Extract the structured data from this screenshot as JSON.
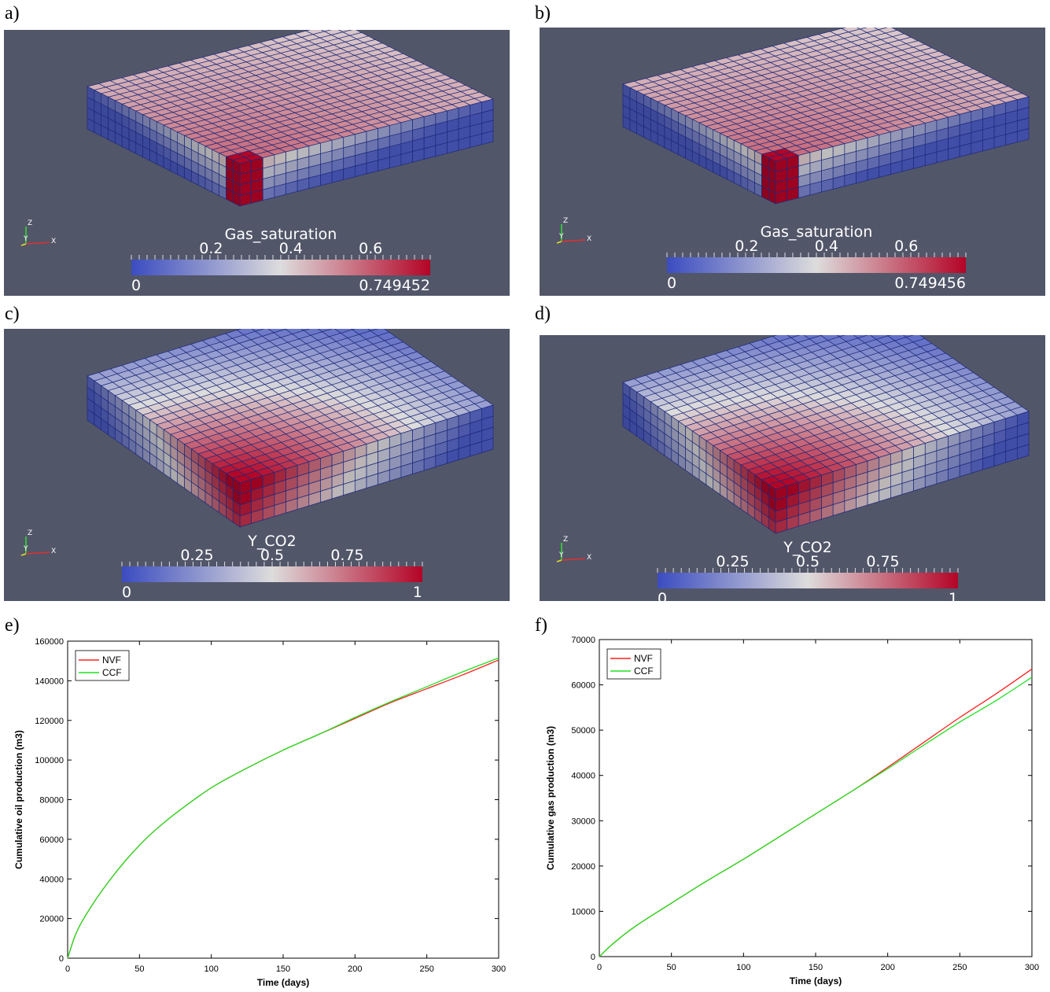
{
  "panels": [
    {
      "label": "a)",
      "colorbar_title": "Gas_saturation",
      "ticks": [
        "0.2",
        "0.4",
        "0.6"
      ],
      "min_label": "0",
      "max_label": "0.749452",
      "field": "gas",
      "axes": {
        "z": "Z",
        "y": "Y",
        "x": "X"
      }
    },
    {
      "label": "b)",
      "colorbar_title": "Gas_saturation",
      "ticks": [
        "0.2",
        "0.4",
        "0.6"
      ],
      "min_label": "0",
      "max_label": "0.749456",
      "field": "gas",
      "axes": {
        "z": "Z",
        "y": "Y",
        "x": "X"
      }
    },
    {
      "label": "c)",
      "colorbar_title": "Y_CO2",
      "ticks": [
        "0.25",
        "0.5",
        "0.75"
      ],
      "min_label": "0",
      "max_label": "1",
      "field": "co2",
      "axes": {
        "z": "Z",
        "y": "Y",
        "x": "X"
      }
    },
    {
      "label": "d)",
      "colorbar_title": "Y_CO2",
      "ticks": [
        "0.25",
        "0.5",
        "0.75"
      ],
      "min_label": "0",
      "max_label": "1",
      "field": "co2",
      "axes": {
        "z": "Z",
        "y": "Y",
        "x": "X"
      }
    }
  ],
  "colors": {
    "viz_background": "#525669",
    "cold": "#3b4cc0",
    "mid": "#dddcdc",
    "hot": "#b40426",
    "nvf": "#ff2020",
    "ccf": "#20e020"
  },
  "chart_labels": [
    "e)",
    "f)"
  ],
  "chart_data": [
    {
      "type": "line",
      "xlabel": "Time (days)",
      "ylabel": "Cumulative oil production (m3)",
      "xlim": [
        0,
        300
      ],
      "ylim": [
        0,
        160000
      ],
      "xticks": [
        0,
        50,
        100,
        150,
        200,
        250,
        300
      ],
      "yticks": [
        0,
        20000,
        40000,
        60000,
        80000,
        100000,
        120000,
        140000,
        160000
      ],
      "legend_position": "top-left",
      "x": [
        0,
        5,
        10,
        20,
        30,
        40,
        50,
        60,
        75,
        100,
        125,
        150,
        175,
        200,
        225,
        250,
        275,
        300
      ],
      "series": [
        {
          "name": "NVF",
          "color": "#ff2020",
          "values": [
            0,
            11000,
            18500,
            30000,
            40000,
            49000,
            57000,
            64000,
            73000,
            86000,
            96000,
            105000,
            113000,
            121000,
            129000,
            136000,
            143000,
            150500
          ]
        },
        {
          "name": "CCF",
          "color": "#20e020",
          "values": [
            0,
            11000,
            18500,
            30000,
            40000,
            49000,
            57000,
            64000,
            73000,
            86000,
            96000,
            105000,
            113000,
            121500,
            129500,
            137000,
            144500,
            151500
          ]
        }
      ]
    },
    {
      "type": "line",
      "xlabel": "Time (days)",
      "ylabel": "Cumulative gas production (m3)",
      "xlim": [
        0,
        300
      ],
      "ylim": [
        0,
        70000
      ],
      "xticks": [
        0,
        50,
        100,
        150,
        200,
        250,
        300
      ],
      "yticks": [
        0,
        10000,
        20000,
        30000,
        40000,
        50000,
        60000,
        70000
      ],
      "legend_position": "top-left",
      "x": [
        0,
        10,
        25,
        50,
        75,
        100,
        125,
        150,
        175,
        200,
        225,
        250,
        275,
        300
      ],
      "series": [
        {
          "name": "NVF",
          "color": "#ff2020",
          "values": [
            0,
            3000,
            6700,
            11800,
            16800,
            21500,
            26500,
            31500,
            36500,
            41800,
            47300,
            52800,
            58000,
            63500
          ]
        },
        {
          "name": "CCF",
          "color": "#20e020",
          "values": [
            0,
            3000,
            6700,
            11800,
            16800,
            21500,
            26500,
            31500,
            36500,
            41500,
            46700,
            51800,
            56500,
            61700
          ]
        }
      ]
    }
  ]
}
